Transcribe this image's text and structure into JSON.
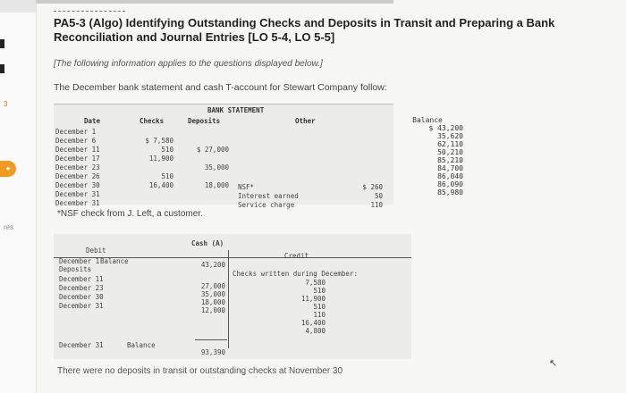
{
  "rail": {
    "label_3": "3",
    "label_res": "res"
  },
  "problem": {
    "title": "PA5-3 (Algo) Identifying Outstanding Checks and Deposits in Transit and Preparing a Bank Reconciliation and Journal Entries [LO 5-4, LO 5-5]",
    "note": "[The following information applies to the questions displayed below.]",
    "intro": "The December bank statement and cash T-account for Stewart Company follow:"
  },
  "bank_statement": {
    "title": "BANK STATEMENT",
    "headers": {
      "date": "Date",
      "checks": "Checks",
      "deposits": "Deposits",
      "other": "Other",
      "balance": "Balance"
    },
    "dates": [
      "December 1",
      "December 6",
      "December 11",
      "December 17",
      "December 23",
      "December 26",
      "December 30",
      "December 31",
      "December 31"
    ],
    "checks": [
      "$ 7,580",
      "510",
      "11,900",
      "510",
      "16,400"
    ],
    "deposits": [
      "$ 27,000",
      "35,000",
      "18,000"
    ],
    "other_labels": [
      "NSF*",
      "Interest earned",
      "Service charge"
    ],
    "other_values": [
      "$ 260",
      "50",
      "110"
    ],
    "balances": [
      "$ 43,200",
      "35,620",
      "62,110",
      "50,210",
      "85,210",
      "84,700",
      "86,040",
      "86,090",
      "85,980"
    ]
  },
  "nsf_note": "*NSF check from J. Left, a customer.",
  "cash_t": {
    "title": "Cash (A)",
    "debit_header": "Debit",
    "debit_sub": "Balance",
    "credit_header": "Credit",
    "left_labels": [
      "December 1",
      "Deposits",
      "December 11",
      "December 23",
      "December 30",
      "December 31"
    ],
    "debits": [
      "43,200",
      "27,000",
      "35,000",
      "18,000",
      "12,000"
    ],
    "credit_caption": "Checks written during December:",
    "credits": [
      "7,580",
      "510",
      "11,900",
      "510",
      "110",
      "16,400",
      "4,800"
    ],
    "ending_date": "December 31",
    "ending_label": "Balance",
    "ending_value": "93,390"
  },
  "footer_text": "There were no deposits in transit or outstanding checks at November 30"
}
